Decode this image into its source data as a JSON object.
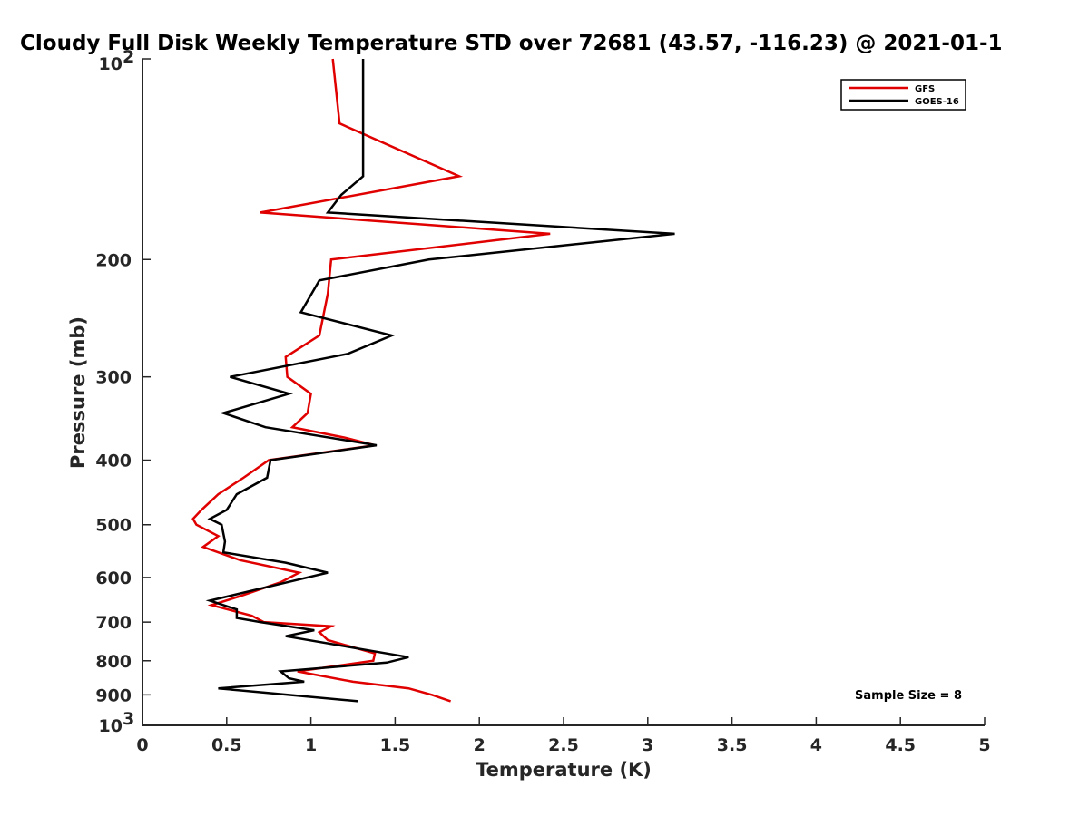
{
  "chart_data": {
    "type": "line",
    "title": "Cloudy Full Disk Weekly Temperature STD over 72681 (43.57, -116.23) @ 2021-01-1",
    "xlabel": "Temperature (K)",
    "ylabel": "Pressure (mb)",
    "xlim": [
      0,
      5
    ],
    "ylim": [
      100,
      1000
    ],
    "y_scale": "log",
    "y_reversed": true,
    "x_ticks": [
      "0",
      "0.5",
      "1",
      "1.5",
      "2",
      "2.5",
      "3",
      "3.5",
      "4",
      "4.5",
      "5"
    ],
    "y_ticks": [
      {
        "value": 100,
        "base": "10",
        "exp": "2"
      },
      {
        "value": 200,
        "label": "200"
      },
      {
        "value": 300,
        "label": "300"
      },
      {
        "value": 400,
        "label": "400"
      },
      {
        "value": 500,
        "label": "500"
      },
      {
        "value": 600,
        "label": "600"
      },
      {
        "value": 700,
        "label": "700"
      },
      {
        "value": 800,
        "label": "800"
      },
      {
        "value": 900,
        "label": "900"
      },
      {
        "value": 1000,
        "base": "10",
        "exp": "3"
      }
    ],
    "legend_position": "top-right",
    "annotation": "Sample Size = 8",
    "series": [
      {
        "name": "GFS",
        "color": "#e00000",
        "points": [
          [
            1.13,
            100
          ],
          [
            1.17,
            125
          ],
          [
            1.88,
            150
          ],
          [
            0.7,
            170
          ],
          [
            2.42,
            183
          ],
          [
            1.12,
            200
          ],
          [
            1.1,
            225
          ],
          [
            1.05,
            260
          ],
          [
            0.85,
            280
          ],
          [
            0.86,
            300
          ],
          [
            1.0,
            318
          ],
          [
            0.98,
            340
          ],
          [
            0.89,
            357
          ],
          [
            1.2,
            370
          ],
          [
            1.38,
            380
          ],
          [
            0.75,
            400
          ],
          [
            0.6,
            425
          ],
          [
            0.45,
            450
          ],
          [
            0.35,
            475
          ],
          [
            0.3,
            490
          ],
          [
            0.32,
            500
          ],
          [
            0.45,
            520
          ],
          [
            0.36,
            540
          ],
          [
            0.58,
            565
          ],
          [
            0.93,
            590
          ],
          [
            0.82,
            610
          ],
          [
            0.58,
            640
          ],
          [
            0.41,
            660
          ],
          [
            0.65,
            685
          ],
          [
            0.72,
            700
          ],
          [
            1.12,
            710
          ],
          [
            1.05,
            725
          ],
          [
            1.1,
            745
          ],
          [
            1.38,
            780
          ],
          [
            1.37,
            800
          ],
          [
            0.92,
            830
          ],
          [
            1.25,
            860
          ],
          [
            1.58,
            880
          ],
          [
            1.72,
            900
          ],
          [
            1.83,
            920
          ]
        ]
      },
      {
        "name": "GOES-16",
        "color": "#000000",
        "points": [
          [
            1.31,
            100
          ],
          [
            1.31,
            125
          ],
          [
            1.31,
            150
          ],
          [
            1.18,
            160
          ],
          [
            1.1,
            170
          ],
          [
            3.16,
            183
          ],
          [
            1.7,
            200
          ],
          [
            1.05,
            215
          ],
          [
            0.94,
            240
          ],
          [
            1.48,
            260
          ],
          [
            1.22,
            277
          ],
          [
            0.52,
            300
          ],
          [
            0.87,
            318
          ],
          [
            0.48,
            340
          ],
          [
            0.73,
            357
          ],
          [
            1.39,
            380
          ],
          [
            0.76,
            400
          ],
          [
            0.74,
            425
          ],
          [
            0.56,
            450
          ],
          [
            0.5,
            475
          ],
          [
            0.4,
            490
          ],
          [
            0.47,
            500
          ],
          [
            0.49,
            530
          ],
          [
            0.48,
            550
          ],
          [
            0.85,
            570
          ],
          [
            1.1,
            590
          ],
          [
            0.8,
            615
          ],
          [
            0.4,
            650
          ],
          [
            0.56,
            670
          ],
          [
            0.56,
            690
          ],
          [
            0.7,
            700
          ],
          [
            1.02,
            720
          ],
          [
            0.85,
            735
          ],
          [
            1.58,
            790
          ],
          [
            1.45,
            805
          ],
          [
            0.82,
            830
          ],
          [
            0.87,
            850
          ],
          [
            0.96,
            860
          ],
          [
            0.45,
            880
          ],
          [
            1.28,
            920
          ]
        ]
      }
    ]
  }
}
